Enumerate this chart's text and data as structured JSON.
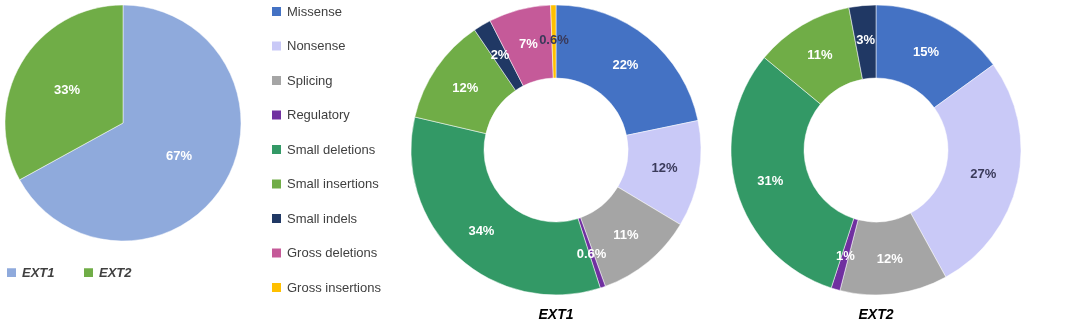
{
  "chart_data": [
    {
      "type": "pie",
      "categories": [
        "EXT1",
        "EXT2"
      ],
      "values": [
        67,
        33
      ],
      "colors": [
        "#8faadc",
        "#70ad47"
      ],
      "value_labels": [
        "67%",
        "33%"
      ],
      "legend": "bottom"
    },
    {
      "type": "donut",
      "title": "EXT1",
      "categories": [
        "Missense",
        "Nonsense",
        "Splicing",
        "Regulatory",
        "Small deletions",
        "Small insertions",
        "Small indels",
        "Gross deletions",
        "Gross insertions"
      ],
      "values": [
        22,
        12,
        11,
        0.6,
        34,
        12,
        2,
        7,
        0.6
      ],
      "colors": [
        "#4472c4",
        "#c9c9f7",
        "#a5a5a5",
        "#7030a0",
        "#339966",
        "#70ad47",
        "#203864",
        "#c55a99",
        "#ffc000"
      ],
      "value_labels": [
        "22%",
        "12%",
        "11%",
        "0.6%",
        "34%",
        "12%",
        "2%",
        "7%",
        "0.6%"
      ],
      "legend": "left"
    },
    {
      "type": "donut",
      "title": "EXT2",
      "categories": [
        null,
        null,
        null,
        null,
        null,
        null,
        null
      ],
      "values": [
        15,
        27,
        12,
        1,
        31,
        11,
        3
      ],
      "colors": [
        "#4472c4",
        "#c9c9f7",
        "#a5a5a5",
        "#7030a0",
        "#339966",
        "#70ad47",
        "#203864"
      ],
      "value_labels": [
        "15%",
        "27%",
        "12%",
        "1%",
        "31%",
        "11%",
        "3%"
      ]
    }
  ]
}
